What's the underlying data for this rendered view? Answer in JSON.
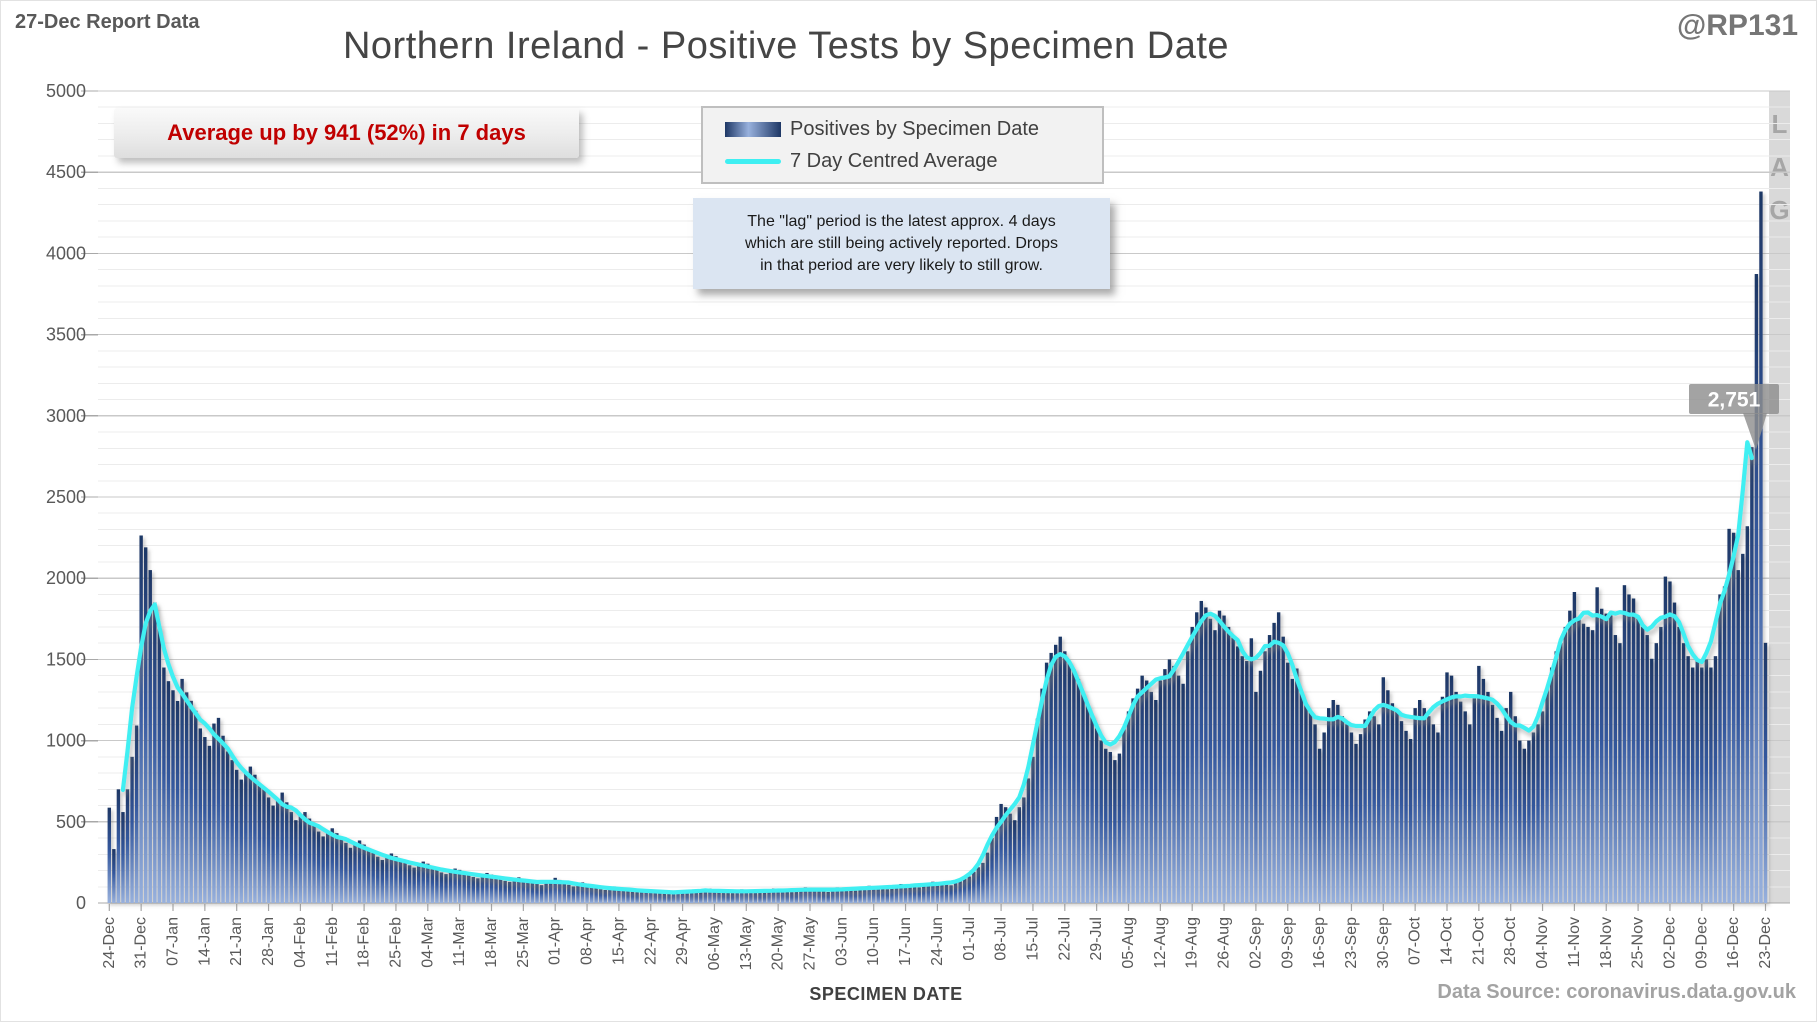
{
  "header": {
    "report_label": "27-Dec Report Data",
    "handle": "@RP131",
    "title": "Northern Ireland - Positive Tests by Specimen Date"
  },
  "annotation": {
    "average_change": "Average up by 941 (52%) in 7 days"
  },
  "legend": [
    {
      "label": "Positives by Specimen Date",
      "type": "bar"
    },
    {
      "label": "7 Day Centred Average",
      "type": "line"
    }
  ],
  "info_box": {
    "lines": [
      "The \"lag\" period is the latest approx. 4 days",
      "which are still being actively reported. Drops",
      "in that period are very likely to still grow."
    ]
  },
  "callout": {
    "value": "2,751"
  },
  "lag_label": [
    "L",
    "A",
    "G"
  ],
  "axes": {
    "x_title": "SPECIMEN DATE",
    "y_ticks": [
      0,
      500,
      1000,
      1500,
      2000,
      2500,
      3000,
      3500,
      4000,
      4500,
      5000
    ]
  },
  "footer": {
    "data_source": "Data Source: coronavirus.data.gov.uk"
  },
  "chart_data": {
    "type": "bar",
    "title": "Northern Ireland - Positive Tests by Specimen Date",
    "xlabel": "SPECIMEN DATE",
    "ylabel": "",
    "ylim": [
      0,
      5000
    ],
    "y_major_step": 500,
    "y_minor_step": 100,
    "grid": "on",
    "legend_position": "top-center",
    "x_tick_labels": [
      "24-Dec",
      "31-Dec",
      "07-Jan",
      "14-Jan",
      "21-Jan",
      "28-Jan",
      "04-Feb",
      "11-Feb",
      "18-Feb",
      "25-Feb",
      "04-Mar",
      "11-Mar",
      "18-Mar",
      "25-Mar",
      "01-Apr",
      "08-Apr",
      "15-Apr",
      "22-Apr",
      "29-Apr",
      "06-May",
      "13-May",
      "20-May",
      "27-May",
      "03-Jun",
      "10-Jun",
      "17-Jun",
      "24-Jun",
      "01-Jul",
      "08-Jul",
      "15-Jul",
      "22-Jul",
      "29-Jul",
      "05-Aug",
      "12-Aug",
      "19-Aug",
      "26-Aug",
      "02-Sep",
      "09-Sep",
      "16-Sep",
      "23-Sep",
      "30-Sep",
      "07-Oct",
      "14-Oct",
      "21-Oct",
      "28-Oct",
      "04-Nov",
      "11-Nov",
      "18-Nov",
      "25-Nov",
      "02-Dec",
      "09-Dec",
      "16-Dec",
      "23-Dec"
    ],
    "days_per_tick": 7,
    "series": [
      {
        "name": "Positives by Specimen Date",
        "type": "bar",
        "values": [
          587,
          332,
          700,
          560,
          700,
          900,
          1093,
          2263,
          2190,
          2050,
          1850,
          1700,
          1450,
          1366,
          1310,
          1244,
          1380,
          1297,
          1245,
          1184,
          1075,
          1022,
          968,
          1105,
          1140,
          1030,
          933,
          880,
          820,
          760,
          800,
          840,
          790,
          730,
          706,
          650,
          600,
          640,
          680,
          620,
          560,
          510,
          540,
          560,
          520,
          480,
          440,
          410,
          440,
          460,
          430,
          400,
          370,
          340,
          365,
          385,
          360,
          335,
          310,
          285,
          265,
          290,
          305,
          288,
          266,
          246,
          232,
          218,
          242,
          255,
          242,
          222,
          204,
          188,
          178,
          200,
          212,
          204,
          190,
          174,
          160,
          152,
          172,
          185,
          175,
          164,
          150,
          136,
          130,
          147,
          158,
          150,
          139,
          127,
          117,
          110,
          126,
          136,
          155,
          142,
          127,
          112,
          102,
          117,
          127,
          119,
          108,
          96,
          85,
          80,
          93,
          102,
          97,
          88,
          78,
          70,
          67,
          78,
          86,
          82,
          74,
          66,
          58,
          57,
          68,
          75,
          71,
          64,
          78,
          70,
          66,
          78,
          88,
          84,
          77,
          69,
          63,
          61,
          75,
          84,
          80,
          74,
          67,
          62,
          66,
          78,
          89,
          85,
          80,
          72,
          67,
          69,
          85,
          96,
          92,
          87,
          78,
          72,
          68,
          85,
          96,
          92,
          87,
          81,
          76,
          81,
          96,
          106,
          102,
          96,
          90,
          85,
          90,
          107,
          117,
          111,
          106,
          100,
          96,
          106,
          121,
          131,
          125,
          119,
          113,
          109,
          125,
          144,
          154,
          163,
          192,
          220,
          247,
          310,
          400,
          530,
          610,
          590,
          550,
          510,
          590,
          650,
          767,
          900,
          1136,
          1320,
          1480,
          1540,
          1590,
          1640,
          1550,
          1490,
          1440,
          1380,
          1300,
          1220,
          1160,
          1075,
          1000,
          950,
          930,
          880,
          920,
          1075,
          1180,
          1260,
          1320,
          1400,
          1370,
          1300,
          1250,
          1370,
          1440,
          1500,
          1460,
          1400,
          1350,
          1550,
          1700,
          1790,
          1860,
          1820,
          1750,
          1680,
          1800,
          1770,
          1700,
          1640,
          1580,
          1520,
          1490,
          1630,
          1300,
          1430,
          1550,
          1650,
          1725,
          1790,
          1640,
          1480,
          1380,
          1444,
          1300,
          1230,
          1180,
          1100,
          950,
          1050,
          1200,
          1250,
          1220,
          1150,
          1100,
          1050,
          980,
          1040,
          1130,
          1180,
          1150,
          1100,
          1390,
          1310,
          1230,
          1180,
          1120,
          1060,
          1010,
          1200,
          1250,
          1200,
          1150,
          1100,
          1050,
          1270,
          1420,
          1400,
          1300,
          1240,
          1180,
          1100,
          1260,
          1460,
          1380,
          1300,
          1220,
          1140,
          1060,
          1200,
          1300,
          1150,
          1000,
          950,
          1000,
          1050,
          1100,
          1180,
          1320,
          1450,
          1550,
          1600,
          1700,
          1800,
          1915,
          1750,
          1720,
          1700,
          1680,
          1944,
          1812,
          1782,
          1771,
          1650,
          1600,
          1957,
          1900,
          1875,
          1750,
          1700,
          1650,
          1504,
          1600,
          1700,
          2010,
          1980,
          1850,
          1700,
          1600,
          1520,
          1450,
          1500,
          1450,
          1500,
          1450,
          1520,
          1900,
          1950,
          2304,
          2280,
          2050,
          2150,
          2320,
          2807,
          3873,
          4381,
          1602
        ]
      },
      {
        "name": "7 Day Centred Average",
        "type": "line",
        "derived": "7-day centred mean of bar series",
        "end_label": "2,751"
      }
    ],
    "colors": {
      "bar_top": "#1E3765",
      "bar_mid": "#34589E",
      "bar_bottom": "#98B1DD",
      "line": "#3FEFF2",
      "lag_band": "#D9D9D9",
      "grid_major": "#C9C9C9",
      "grid_minor": "#ECECEC",
      "axis": "#A8A8A8",
      "tick_text": "#595959",
      "accent_red": "#C00000"
    }
  }
}
